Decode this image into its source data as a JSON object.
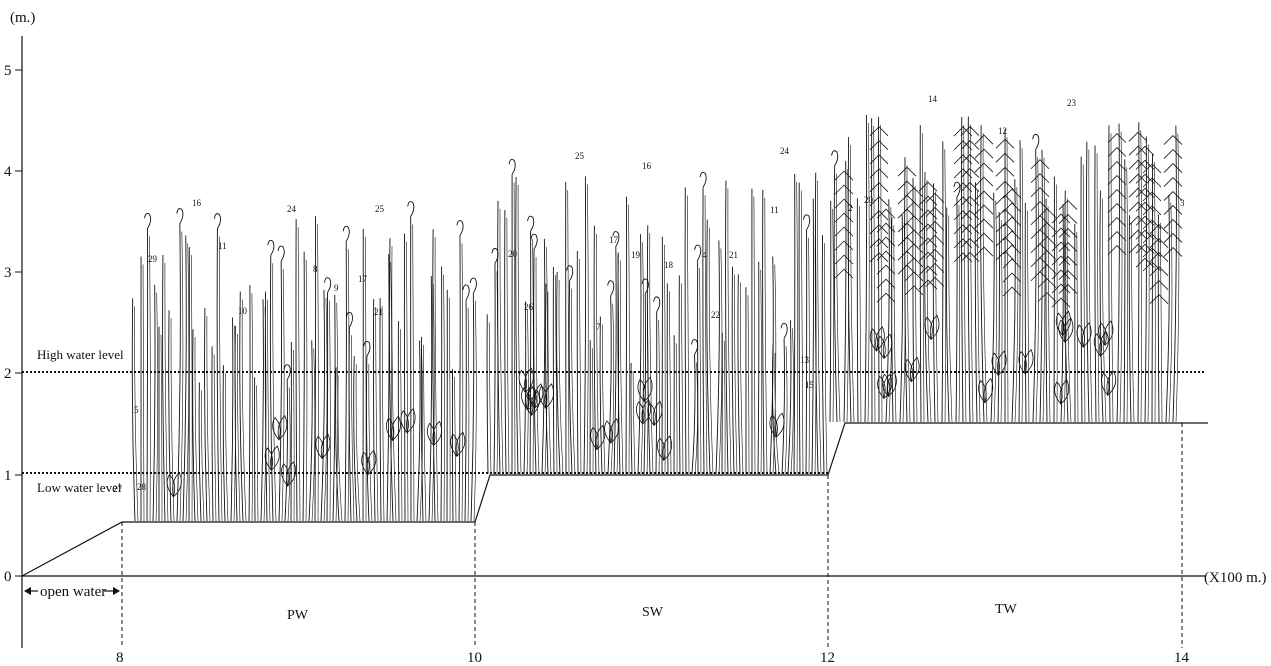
{
  "y_axis": {
    "unit": "(m.)",
    "ticks": [
      "0",
      "1",
      "2",
      "3",
      "4",
      "5"
    ]
  },
  "x_axis": {
    "unit": "(X100 m.)",
    "ticks": [
      "8",
      "10",
      "12",
      "14"
    ]
  },
  "water_levels": {
    "high": {
      "label": "High water level",
      "value_m": 2
    },
    "low": {
      "label": "Low water level",
      "value_m": 1
    }
  },
  "open_water_label": "open water",
  "zones": [
    {
      "label": "PW",
      "from": 8,
      "to": 10,
      "ground_m": 0.5
    },
    {
      "label": "SW",
      "from": 10,
      "to": 12,
      "ground_m": 1.0
    },
    {
      "label": "TW",
      "from": 12,
      "to": 14,
      "ground_m": 1.5
    }
  ],
  "species_numbers": {
    "pw": [
      "27",
      "28",
      "5",
      "29",
      "16",
      "11",
      "10",
      "24",
      "8",
      "9",
      "17",
      "25",
      "21"
    ],
    "sw": [
      "20",
      "26",
      "25",
      "7",
      "17",
      "16",
      "19",
      "18",
      "4",
      "22",
      "21",
      "24",
      "11",
      "13",
      "15"
    ],
    "tw": [
      "2",
      "20",
      "14",
      "12",
      "23",
      "3"
    ]
  },
  "colors": {
    "line": "#111111",
    "background": "#ffffff"
  }
}
